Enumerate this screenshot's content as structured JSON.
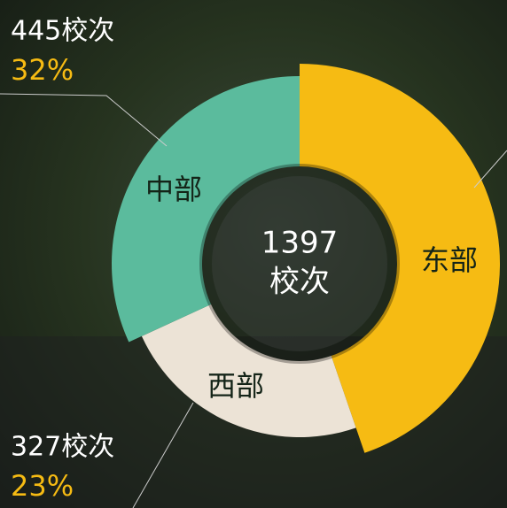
{
  "chart_data": {
    "type": "donut",
    "categories": [
      "东部",
      "西部",
      "中部"
    ],
    "values": [
      625,
      327,
      445
    ],
    "value_labels": [
      null,
      "327校次",
      "445校次"
    ],
    "percent_labels": [
      null,
      "23%",
      "32%"
    ],
    "colors": [
      "#f6bb13",
      "#ece3d6",
      "#5bbb9d"
    ],
    "center_total": 1397,
    "center_unit": "校次"
  }
}
